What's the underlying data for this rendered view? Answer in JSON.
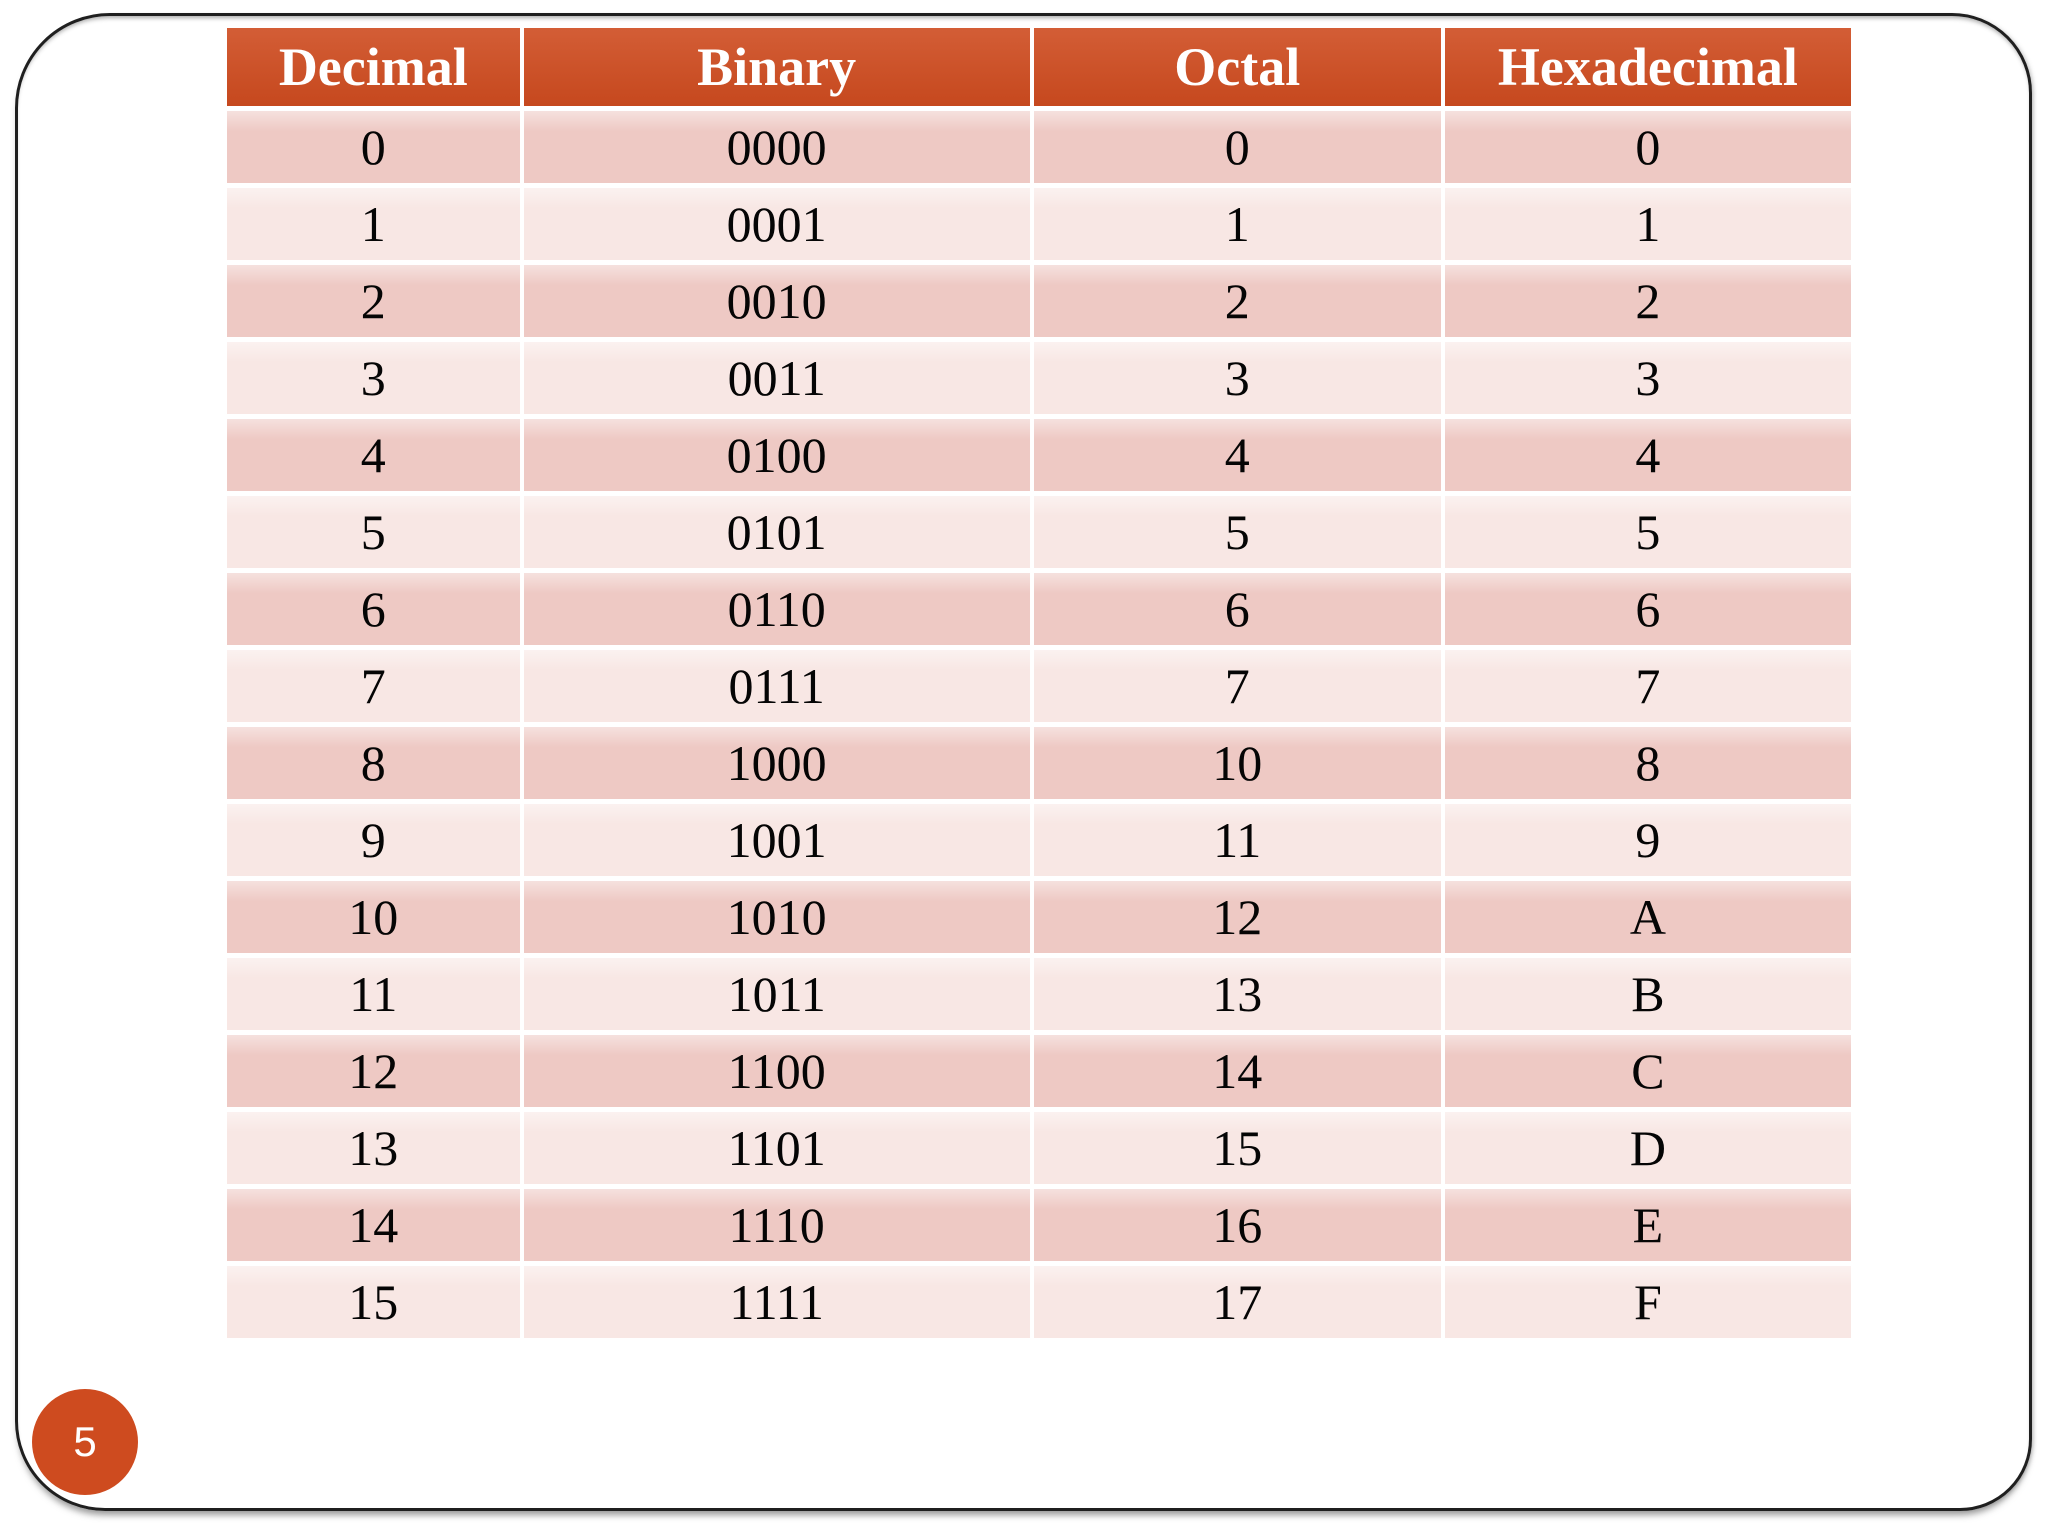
{
  "slide": {
    "page_number": "5"
  },
  "table": {
    "headers": [
      "Decimal",
      "Binary",
      "Octal",
      "Hexadecimal"
    ],
    "rows": [
      [
        "0",
        "0000",
        "0",
        "0"
      ],
      [
        "1",
        "0001",
        "1",
        "1"
      ],
      [
        "2",
        "0010",
        "2",
        "2"
      ],
      [
        "3",
        "0011",
        "3",
        "3"
      ],
      [
        "4",
        "0100",
        "4",
        "4"
      ],
      [
        "5",
        "0101",
        "5",
        "5"
      ],
      [
        "6",
        "0110",
        "6",
        "6"
      ],
      [
        "7",
        "0111",
        "7",
        "7"
      ],
      [
        "8",
        "1000",
        "10",
        "8"
      ],
      [
        "9",
        "1001",
        "11",
        "9"
      ],
      [
        "10",
        "1010",
        "12",
        "A"
      ],
      [
        "11",
        "1011",
        "13",
        "B"
      ],
      [
        "12",
        "1100",
        "14",
        "C"
      ],
      [
        "13",
        "1101",
        "15",
        "D"
      ],
      [
        "14",
        "1110",
        "16",
        "E"
      ],
      [
        "15",
        "1111",
        "17",
        "F"
      ]
    ]
  },
  "colors": {
    "header_bg": "#CE4B1F",
    "row_even_bg": "#EEC9C4",
    "row_odd_bg": "#F8E7E4",
    "badge_bg": "#CE4B1F",
    "frame_border": "#1F1F1F"
  }
}
